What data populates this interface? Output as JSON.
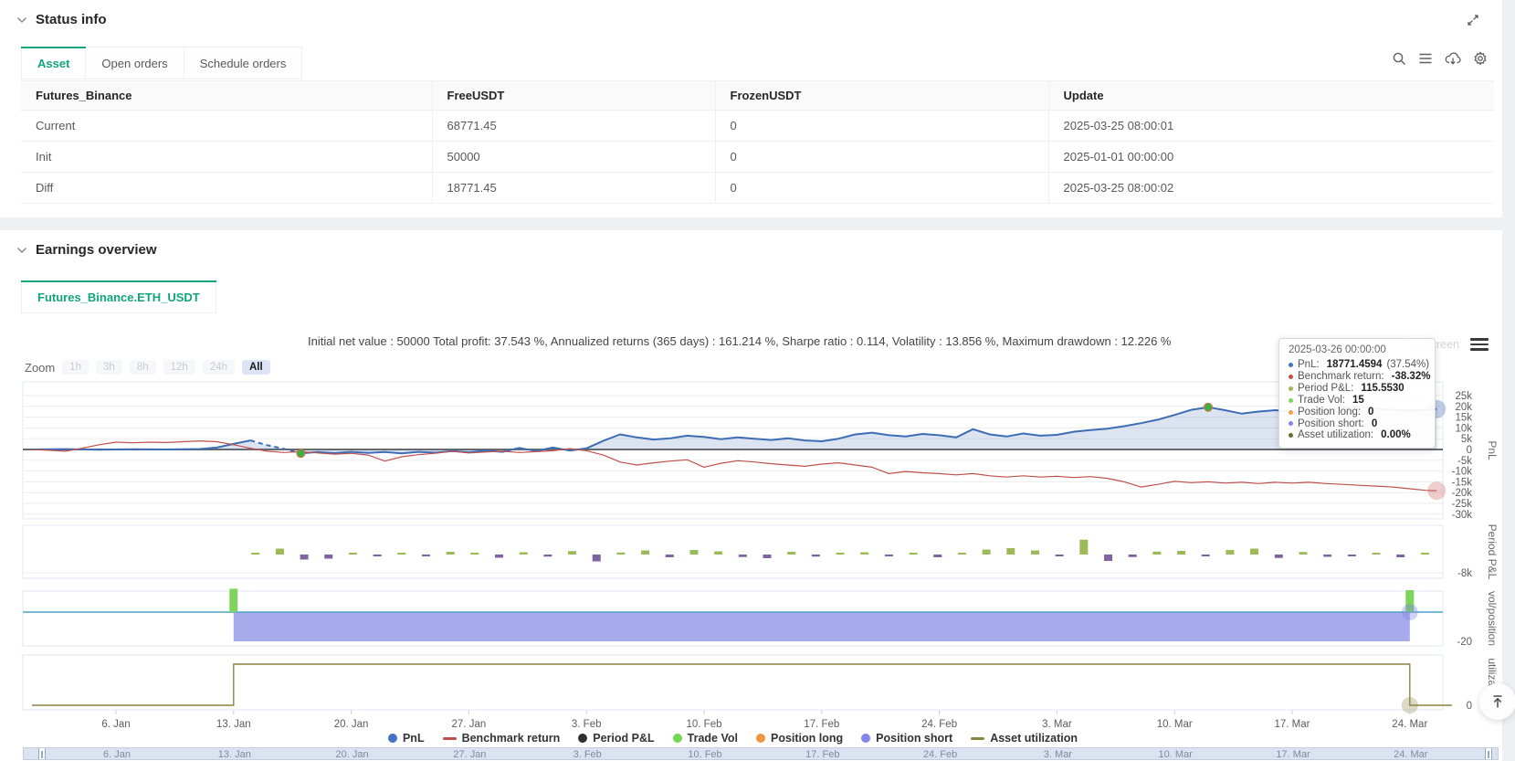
{
  "status": {
    "title": "Status info",
    "tabs": [
      {
        "label": "Asset",
        "active": true
      },
      {
        "label": "Open orders",
        "active": false
      },
      {
        "label": "Schedule orders",
        "active": false
      }
    ],
    "table": {
      "columns": [
        "Futures_Binance",
        "FreeUSDT",
        "FrozenUSDT",
        "Update"
      ],
      "rows": [
        {
          "cells": [
            {
              "text": "Current",
              "style": "link"
            },
            {
              "text": "68771.45"
            },
            {
              "text": "0"
            },
            {
              "text": "2025-03-25 08:00:01"
            }
          ]
        },
        {
          "cells": [
            {
              "text": "Init"
            },
            {
              "text": "50000"
            },
            {
              "text": "0"
            },
            {
              "text": "2025-01-01 00:00:00"
            }
          ]
        },
        {
          "cells": [
            {
              "text": "Diff",
              "style": "danger"
            },
            {
              "text": "18771.45",
              "style": "danger"
            },
            {
              "text": "0"
            },
            {
              "text": "2025-03-25 08:00:02"
            }
          ]
        }
      ]
    }
  },
  "earnings": {
    "title": "Earnings overview",
    "tab_label": "Futures_Binance.ETH_USDT",
    "fullscreen_label": "FullScreen",
    "zoom": {
      "label": "Zoom",
      "buttons": [
        "1h",
        "3h",
        "8h",
        "12h",
        "24h",
        "All"
      ],
      "active": "All"
    }
  },
  "tooltip": {
    "title": "2025-03-26 00:00:00",
    "rows": [
      {
        "color": "#4472c4",
        "label": "PnL:",
        "value": "18771.4594",
        "extra": " (37.54%)"
      },
      {
        "color": "#c0504d",
        "label": "Benchmark return:",
        "value": "-38.32%",
        "extra": ""
      },
      {
        "color": "#9bbb59",
        "label": "Period P&L:",
        "value": "115.5530",
        "extra": ""
      },
      {
        "color": "#7fd45e",
        "label": "Trade Vol:",
        "value": "15",
        "extra": ""
      },
      {
        "color": "#f0a04b",
        "label": "Position long:",
        "value": "0",
        "extra": ""
      },
      {
        "color": "#8286e8",
        "label": "Position short:",
        "value": "0",
        "extra": ""
      },
      {
        "color": "#6b6b2a",
        "label": "Asset utilization:",
        "value": "0.00%",
        "extra": ""
      }
    ]
  },
  "legend": {
    "items": [
      {
        "label": "PnL",
        "marker": "circle",
        "color": "#4472c4"
      },
      {
        "label": "Benchmark return",
        "marker": "line",
        "color": "#c0504d"
      },
      {
        "label": "Period P&L",
        "marker": "circle",
        "color": "#2f2f2f"
      },
      {
        "label": "Trade Vol",
        "marker": "circle",
        "color": "#72d84e"
      },
      {
        "label": "Position long",
        "marker": "circle",
        "color": "#f0973f"
      },
      {
        "label": "Position short",
        "marker": "circle",
        "color": "#8286e8"
      },
      {
        "label": "Asset utilization",
        "marker": "line",
        "color": "#8a8440"
      }
    ]
  },
  "chart_data": {
    "type": "mixed-time-series",
    "title": "Initial net value : 50000 Total profit: 37.543 %, Annualized returns (365 days) : 161.214 %, Sharpe ratio : 0.114, Volatility : 13.856 %, Maximum drawdown : 12.226 %",
    "x_axis": {
      "tick_days": [
        5,
        12,
        19,
        26,
        33,
        40,
        47,
        54,
        61,
        68,
        75,
        82
      ],
      "tick_labels": [
        "6. Jan",
        "13. Jan",
        "20. Jan",
        "27. Jan",
        "3. Feb",
        "10. Feb",
        "17. Feb",
        "24. Feb",
        "3. Mar",
        "10. Mar",
        "17. Mar",
        "24. Mar"
      ]
    },
    "panes": [
      {
        "title": "PnL",
        "unit": "k USDT",
        "ticks": [
          [
            25,
            "25k"
          ],
          [
            20,
            "20k"
          ],
          [
            15,
            "15k"
          ],
          [
            10,
            "10k"
          ],
          [
            5,
            "5k"
          ],
          [
            0,
            "0"
          ],
          [
            -5,
            "-5k"
          ],
          [
            -10,
            "-10k"
          ],
          [
            -15,
            "-15k"
          ],
          [
            -20,
            "-20k"
          ],
          [
            -25,
            "-25k"
          ],
          [
            -30,
            "-30k"
          ]
        ]
      },
      {
        "title": "Period P&L",
        "tick_value": -8,
        "tick_label": "-8k"
      },
      {
        "title": "vol/position",
        "tick_value": -20,
        "tick_label": "-20"
      },
      {
        "title": "utilizatio...",
        "tick_value": 0,
        "tick_label": "0"
      }
    ],
    "series": {
      "pnl": {
        "name": "PnL",
        "color": "#3d6db5",
        "area_color": "rgba(62,108,181,0.18)",
        "dash_range": [
          13,
          16
        ],
        "points": [
          [
            0,
            0
          ],
          [
            2,
            0.15
          ],
          [
            4,
            -0.1
          ],
          [
            6,
            0.1
          ],
          [
            8,
            0
          ],
          [
            10,
            0.2
          ],
          [
            11,
            0.9
          ],
          [
            12,
            2.6
          ],
          [
            13,
            4.2
          ],
          [
            14,
            2
          ],
          [
            15,
            0.3
          ],
          [
            16,
            -1.8
          ],
          [
            17,
            -1.2
          ],
          [
            18,
            -1.7
          ],
          [
            19,
            -1.1
          ],
          [
            20,
            -1.6
          ],
          [
            21,
            -1.2
          ],
          [
            22,
            -1.8
          ],
          [
            23,
            -1.1
          ],
          [
            24,
            -1.5
          ],
          [
            25,
            -0.7
          ],
          [
            26,
            -1.3
          ],
          [
            27,
            -0.5
          ],
          [
            28,
            -1.1
          ],
          [
            29,
            0.7
          ],
          [
            30,
            -0.7
          ],
          [
            31,
            0.9
          ],
          [
            32,
            -0.5
          ],
          [
            33,
            0.5
          ],
          [
            34,
            4
          ],
          [
            35,
            7
          ],
          [
            36,
            5.6
          ],
          [
            37,
            4.6
          ],
          [
            38,
            5.2
          ],
          [
            39,
            6.4
          ],
          [
            40,
            5.8
          ],
          [
            41,
            4.8
          ],
          [
            42,
            5.6
          ],
          [
            43,
            5
          ],
          [
            44,
            4.4
          ],
          [
            45,
            5.2
          ],
          [
            46,
            4.2
          ],
          [
            47,
            3.8
          ],
          [
            48,
            5
          ],
          [
            49,
            7
          ],
          [
            50,
            7.8
          ],
          [
            51,
            6.6
          ],
          [
            52,
            6
          ],
          [
            53,
            7.2
          ],
          [
            54,
            6.6
          ],
          [
            55,
            5.6
          ],
          [
            56,
            9.4
          ],
          [
            57,
            7
          ],
          [
            58,
            6
          ],
          [
            59,
            7.4
          ],
          [
            60,
            6.4
          ],
          [
            61,
            6.8
          ],
          [
            62,
            8.2
          ],
          [
            63,
            9
          ],
          [
            64,
            9.6
          ],
          [
            65,
            10.8
          ],
          [
            66,
            12.2
          ],
          [
            67,
            13.8
          ],
          [
            68,
            16
          ],
          [
            69,
            18.4
          ],
          [
            70,
            19.6
          ],
          [
            71,
            18.2
          ],
          [
            72,
            16.6
          ],
          [
            73,
            17.6
          ],
          [
            74,
            18.2
          ],
          [
            75,
            17.4
          ],
          [
            76,
            17.8
          ],
          [
            77,
            18.6
          ],
          [
            78,
            19.4
          ],
          [
            79,
            19.8
          ],
          [
            80,
            19
          ],
          [
            81,
            18.4
          ],
          [
            82,
            18
          ],
          [
            83,
            18.4
          ],
          [
            83.6,
            18.77
          ]
        ]
      },
      "benchmark": {
        "name": "Benchmark return",
        "color": "#c0504d",
        "points": [
          [
            0,
            0
          ],
          [
            1,
            -0.4
          ],
          [
            2,
            -0.8
          ],
          [
            3,
            0.6
          ],
          [
            4,
            2.2
          ],
          [
            5,
            3.4
          ],
          [
            6,
            3.1
          ],
          [
            7,
            3.4
          ],
          [
            8,
            3.2
          ],
          [
            9,
            3.6
          ],
          [
            10,
            4
          ],
          [
            11,
            3.6
          ],
          [
            12,
            2.2
          ],
          [
            13,
            0.6
          ],
          [
            14,
            -0.8
          ],
          [
            15,
            -1.4
          ],
          [
            16,
            -1
          ],
          [
            17,
            -1.6
          ],
          [
            18,
            -2.2
          ],
          [
            19,
            -1.8
          ],
          [
            20,
            -2.6
          ],
          [
            21,
            -5.4
          ],
          [
            22,
            -3.4
          ],
          [
            23,
            -2.4
          ],
          [
            24,
            -1.8
          ],
          [
            25,
            -0.8
          ],
          [
            26,
            -1.6
          ],
          [
            27,
            -1.2
          ],
          [
            28,
            -0.8
          ],
          [
            29,
            -1.4
          ],
          [
            30,
            -1
          ],
          [
            31,
            -0.6
          ],
          [
            32,
            0.4
          ],
          [
            33,
            -0.6
          ],
          [
            34,
            -2.6
          ],
          [
            35,
            -5.8
          ],
          [
            36,
            -7.2
          ],
          [
            37,
            -6.2
          ],
          [
            38,
            -5.4
          ],
          [
            39,
            -4.8
          ],
          [
            40,
            -8.2
          ],
          [
            41,
            -6.4
          ],
          [
            42,
            -5.2
          ],
          [
            43,
            -5.8
          ],
          [
            44,
            -6.6
          ],
          [
            45,
            -7.2
          ],
          [
            46,
            -7.8
          ],
          [
            47,
            -6.8
          ],
          [
            48,
            -6.2
          ],
          [
            49,
            -7.2
          ],
          [
            50,
            -8.2
          ],
          [
            51,
            -11.2
          ],
          [
            52,
            -10.2
          ],
          [
            53,
            -10.8
          ],
          [
            54,
            -11.2
          ],
          [
            55,
            -11.8
          ],
          [
            56,
            -11.2
          ],
          [
            57,
            -12.2
          ],
          [
            58,
            -12.8
          ],
          [
            59,
            -12.2
          ],
          [
            60,
            -12.8
          ],
          [
            61,
            -12.4
          ],
          [
            62,
            -13
          ],
          [
            63,
            -12.6
          ],
          [
            64,
            -13.4
          ],
          [
            65,
            -15
          ],
          [
            66,
            -17.4
          ],
          [
            67,
            -16.2
          ],
          [
            68,
            -14.8
          ],
          [
            69,
            -15.4
          ],
          [
            70,
            -15
          ],
          [
            71,
            -15.6
          ],
          [
            72,
            -15.2
          ],
          [
            73,
            -15.8
          ],
          [
            74,
            -15.2
          ],
          [
            75,
            -15.6
          ],
          [
            76,
            -15.2
          ],
          [
            77,
            -15.8
          ],
          [
            78,
            -16.2
          ],
          [
            79,
            -16.6
          ],
          [
            80,
            -17
          ],
          [
            81,
            -17.4
          ],
          [
            82,
            -18.2
          ],
          [
            83,
            -19
          ],
          [
            83.6,
            -19.16
          ]
        ]
      },
      "period_pnl": {
        "name": "Period P&L",
        "pos_color": "#9bbb59",
        "neg_color": "#8064a2",
        "start_day": 13.3,
        "day_step": 1.45,
        "values": [
          0.5,
          2.6,
          -2.2,
          -1.8,
          0.4,
          -0.5,
          0.7,
          -0.5,
          1.2,
          0.8,
          -1.4,
          1,
          -0.9,
          1.5,
          -3,
          0.9,
          1.8,
          -1.2,
          2,
          1.4,
          -1.1,
          -1.6,
          1.2,
          -0.9,
          0.3,
          1,
          -0.4,
          0.8,
          -1.2,
          0.5,
          2.2,
          2.8,
          1.8,
          -0.8,
          6.5,
          -2.8,
          -1.1,
          1.3,
          1.6,
          -0.3,
          2,
          2.6,
          -1.5,
          1.1,
          -1,
          -0.6,
          0.6,
          -1.2,
          0.8
        ]
      },
      "trade_vol": {
        "name": "Trade Vol",
        "color": "#7fd45e",
        "bars": [
          [
            12,
            16
          ],
          [
            82,
            15
          ]
        ]
      },
      "position_zero_line": {
        "color": "#4aa3cc",
        "value": 0
      },
      "position_short": {
        "name": "Position short",
        "color": "#989be7",
        "value": -20,
        "from_day": 12,
        "to_day": 82
      },
      "asset_utilization": {
        "name": "Asset utilization",
        "color": "#8a8440",
        "segments": [
          [
            0,
            0
          ],
          [
            12,
            0
          ],
          [
            12,
            0.75
          ],
          [
            82,
            0.75
          ],
          [
            82,
            0
          ],
          [
            84.5,
            0
          ]
        ]
      }
    },
    "markers": {
      "trade_dots": {
        "color": "#3fae49",
        "ring": "#e2703a",
        "points": [
          [
            16,
            -1.8
          ],
          [
            70,
            19.6
          ]
        ]
      },
      "end_halos": {
        "pnl": {
          "color": "rgba(63,108,181,0.33)",
          "point": [
            83.6,
            18.77
          ]
        },
        "benchmark": {
          "color": "rgba(190,80,77,0.28)",
          "point": [
            83.6,
            -19.16
          ]
        },
        "position": {
          "color": "rgba(130,134,232,0.38)",
          "day": 82
        },
        "utilization": {
          "color": "rgba(138,132,64,0.3)",
          "day": 82
        }
      }
    },
    "layout": {
      "grid": true,
      "zero_line_color": "#6a6a6a",
      "grid_color": "#ededed",
      "pane_border": "#e2e8f4"
    }
  },
  "datazoom": {
    "labels": [
      "6. Jan",
      "13. Jan",
      "20. Jan",
      "27. Jan",
      "3. Feb",
      "10. Feb",
      "17. Feb",
      "24. Feb",
      "3. Mar",
      "10. Mar",
      "17. Mar",
      "24. Mar"
    ]
  }
}
